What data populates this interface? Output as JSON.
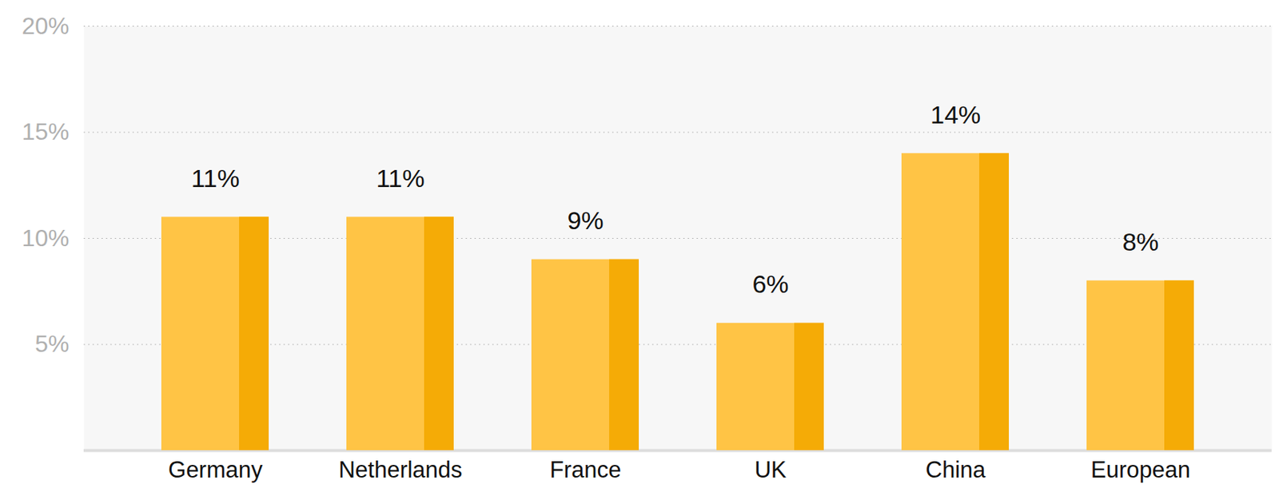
{
  "chart_data": {
    "type": "bar",
    "categories": [
      "Germany",
      "Netherlands",
      "France",
      "UK",
      "China",
      "European"
    ],
    "values": [
      11,
      11,
      9,
      6,
      14,
      8
    ],
    "value_labels": [
      "11%",
      "11%",
      "9%",
      "6%",
      "14%",
      "8%"
    ],
    "color": "#ffc445",
    "ylim": [
      0,
      20
    ],
    "yticks": [
      {
        "value": 5,
        "label": "5%"
      },
      {
        "value": 10,
        "label": "10%"
      },
      {
        "value": 15,
        "label": "15%"
      },
      {
        "value": 20,
        "label": "20%"
      }
    ],
    "grid": true,
    "data_labels": true
  }
}
